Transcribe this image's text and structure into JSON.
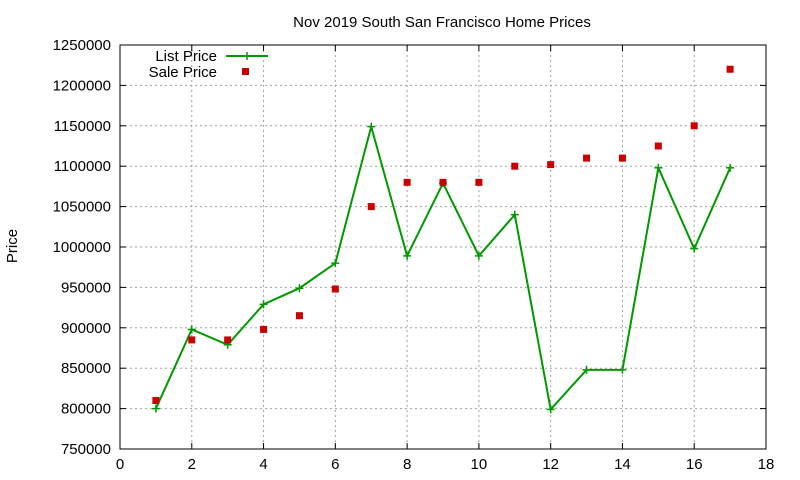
{
  "chart_data": {
    "type": "line",
    "title": "Nov 2019 South San Francisco Home Prices",
    "xlabel": "",
    "ylabel": "Price",
    "xlim": [
      0,
      18
    ],
    "ylim": [
      750000,
      1250000
    ],
    "xticks": [
      0,
      2,
      4,
      6,
      8,
      10,
      12,
      14,
      16,
      18
    ],
    "yticks": [
      750000,
      800000,
      850000,
      900000,
      950000,
      1000000,
      1050000,
      1100000,
      1150000,
      1200000,
      1250000
    ],
    "grid": true,
    "legend_position": "top-left",
    "series": [
      {
        "name": "List Price",
        "style": "linespoints",
        "marker": "plus",
        "color": "#009900",
        "x": [
          1,
          2,
          3,
          4,
          5,
          6,
          7,
          8,
          9,
          10,
          11,
          12,
          13,
          14,
          15,
          16,
          17
        ],
        "y": [
          800000,
          898000,
          879000,
          929000,
          949000,
          980000,
          1149000,
          989000,
          1079000,
          989000,
          1040000,
          799000,
          848000,
          848000,
          1098000,
          998000,
          1098000
        ]
      },
      {
        "name": "Sale Price",
        "style": "points",
        "marker": "square",
        "color": "#cc0000",
        "x": [
          1,
          2,
          3,
          4,
          5,
          6,
          7,
          8,
          9,
          10,
          11,
          12,
          13,
          14,
          15,
          16,
          17
        ],
        "y": [
          810000,
          885000,
          885000,
          898000,
          915000,
          948000,
          1050000,
          1080000,
          1080000,
          1080000,
          1100000,
          1102000,
          1110000,
          1110000,
          1125000,
          1150000,
          1220000
        ]
      }
    ]
  }
}
